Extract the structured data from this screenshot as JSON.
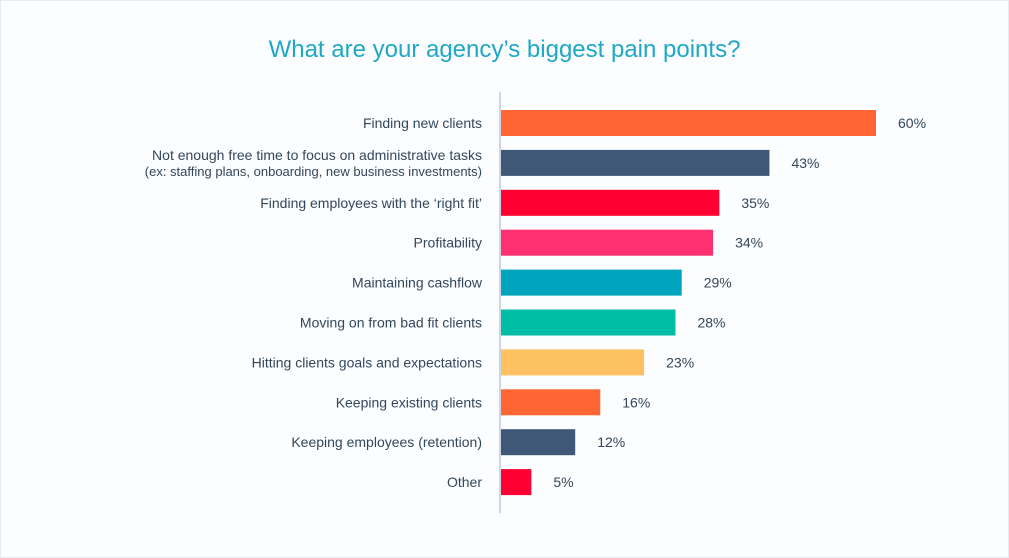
{
  "chart_data": {
    "type": "bar",
    "orientation": "horizontal",
    "title": "What are your agency’s biggest pain points?",
    "categories": [
      [
        "Finding new clients"
      ],
      [
        "Not enough free time to focus on administrative tasks",
        "(ex: staffing plans, onboarding, new business investments)"
      ],
      [
        "Finding employees with the ‘right fit’"
      ],
      [
        "Profitability"
      ],
      [
        "Maintaining cashflow"
      ],
      [
        "Moving on from bad fit clients"
      ],
      [
        "Hitting clients goals and expectations"
      ],
      [
        "Keeping existing clients"
      ],
      [
        "Keeping employees (retention)"
      ],
      [
        "Other"
      ]
    ],
    "values": [
      60,
      43,
      35,
      34,
      29,
      28,
      23,
      16,
      12,
      5
    ],
    "value_labels": [
      "60%",
      "43%",
      "35%",
      "34%",
      "29%",
      "28%",
      "23%",
      "16%",
      "12%",
      "5%"
    ],
    "colors": [
      "#ff6633",
      "#3f5877",
      "#ff0033",
      "#ff3071",
      "#00a4bd",
      "#00bda5",
      "#fdc162",
      "#ff6633",
      "#3f5877",
      "#ff0033"
    ],
    "xlim": [
      0,
      60
    ],
    "unit": "%",
    "grid": false,
    "legend": "none"
  }
}
